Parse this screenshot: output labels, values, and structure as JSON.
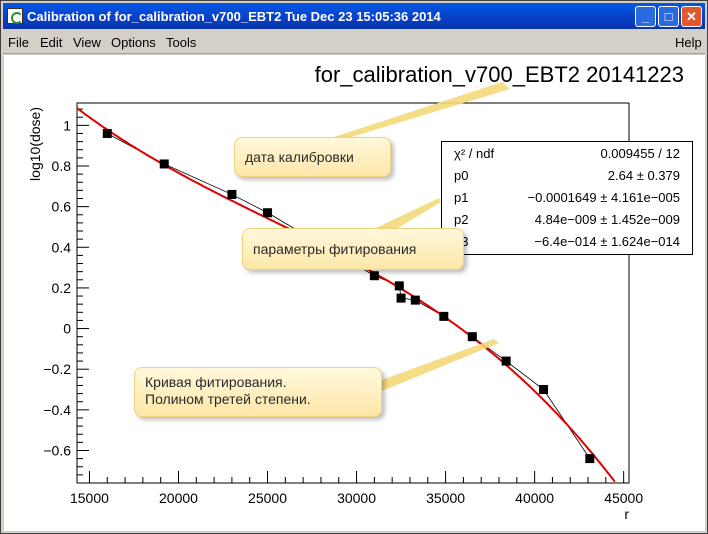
{
  "window": {
    "title": "Calibration of for_calibration_v700_EBT2 Tue Dec 23 15:05:36 2014",
    "minimize_label": "_",
    "maximize_label": "□",
    "close_label": "✕"
  },
  "menu": [
    "File",
    "Edit",
    "View",
    "Options",
    "Tools"
  ],
  "help_label": "Help",
  "plot_title": "for_calibration_v700_EBT2 20141223",
  "stats": {
    "rows": [
      {
        "name": "χ² / ndf",
        "value": "0.009455 / 12"
      },
      {
        "name": "p0",
        "value": "2.64 ± 0.379"
      },
      {
        "name": "p1",
        "value": "−0.0001649 ± 4.161e−005"
      },
      {
        "name": "p2",
        "value": "4.84e−009 ± 1.452e−009"
      },
      {
        "name": "p3",
        "value": "−6.4e−014 ± 1.624e−014"
      }
    ]
  },
  "callouts": {
    "date": "дата калибровки",
    "params": "параметры фитирования",
    "curve": "Кривая фитирования.\nПолином третей степени."
  },
  "colors": {
    "titlebar": "#0a3fc7",
    "fit_curve": "#e00000",
    "points": "#000000",
    "callout_bg": "#fde7a8"
  },
  "chart_data": {
    "type": "scatter",
    "xlabel": "r",
    "ylabel": "log10(dose)",
    "xlim": [
      14300,
      45300
    ],
    "ylim": [
      -0.76,
      1.11
    ],
    "xticks": [
      15000,
      20000,
      25000,
      30000,
      35000,
      40000,
      45000
    ],
    "yticks": [
      -0.6,
      -0.4,
      -0.2,
      0,
      0.2,
      0.4,
      0.6,
      0.8,
      1
    ],
    "points": [
      {
        "x": 16000,
        "y": 0.96
      },
      {
        "x": 19200,
        "y": 0.81
      },
      {
        "x": 23000,
        "y": 0.66
      },
      {
        "x": 25000,
        "y": 0.57
      },
      {
        "x": 31000,
        "y": 0.26
      },
      {
        "x": 32400,
        "y": 0.21
      },
      {
        "x": 32500,
        "y": 0.15
      },
      {
        "x": 33300,
        "y": 0.14
      },
      {
        "x": 34900,
        "y": 0.06
      },
      {
        "x": 36500,
        "y": -0.04
      },
      {
        "x": 38400,
        "y": -0.16
      },
      {
        "x": 40500,
        "y": -0.3
      },
      {
        "x": 43100,
        "y": -0.64
      }
    ],
    "fit": {
      "p0": 2.64,
      "p1": -0.0001649,
      "p2": 4.84e-09,
      "p3": -6.4e-14
    }
  }
}
